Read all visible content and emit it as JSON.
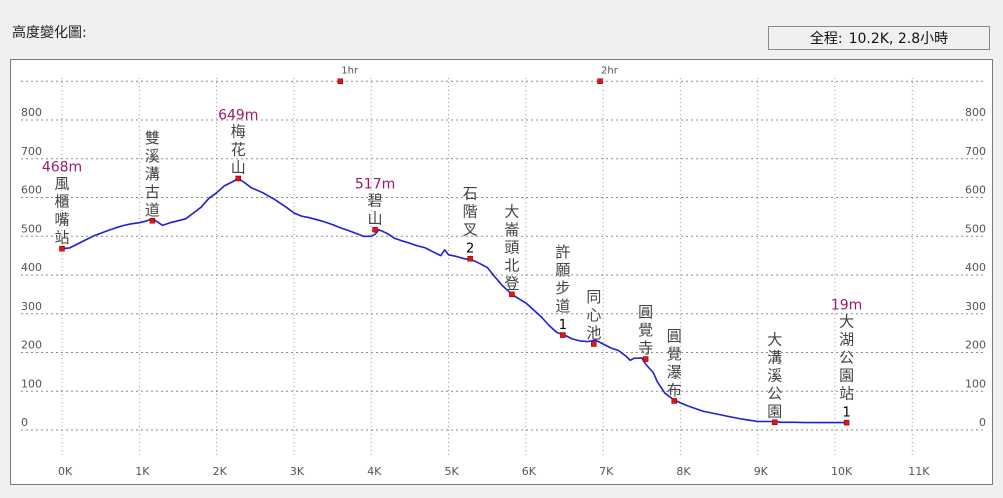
{
  "header": {
    "title": "高度變化圖:",
    "summary_label": "全程:",
    "summary_value": "10.2K, 2.8小時"
  },
  "chart_data": {
    "type": "line",
    "title": "",
    "xlabel": "",
    "ylabel": "",
    "x_unit": "K",
    "y_unit": "m",
    "xlim": [
      0,
      11.3
    ],
    "ylim": [
      0,
      900
    ],
    "x_ticks": [
      "0K",
      "1K",
      "2K",
      "3K",
      "4K",
      "5K",
      "6K",
      "7K",
      "8K",
      "9K",
      "10K",
      "11K"
    ],
    "y_ticks": [
      "0",
      "100",
      "200",
      "300",
      "400",
      "500",
      "600",
      "700",
      "800"
    ],
    "grid": true,
    "series": [
      {
        "color": "#1f1fd6",
        "x": [
          0.0,
          0.1,
          0.2,
          0.3,
          0.4,
          0.5,
          0.6,
          0.7,
          0.8,
          0.9,
          1.0,
          1.1,
          1.17,
          1.25,
          1.3,
          1.4,
          1.5,
          1.6,
          1.7,
          1.8,
          1.9,
          2.0,
          2.1,
          2.2,
          2.28,
          2.35,
          2.45,
          2.6,
          2.75,
          2.9,
          3.0,
          3.1,
          3.2,
          3.35,
          3.5,
          3.6,
          3.7,
          3.8,
          3.9,
          4.0,
          4.05,
          4.1,
          4.2,
          4.3,
          4.4,
          4.5,
          4.6,
          4.7,
          4.8,
          4.9,
          4.95,
          5.0,
          5.1,
          5.2,
          5.28,
          5.35,
          5.5,
          5.6,
          5.7,
          5.82,
          5.9,
          6.0,
          6.1,
          6.2,
          6.3,
          6.4,
          6.5,
          6.6,
          6.7,
          6.8,
          6.9,
          7.0,
          7.1,
          7.2,
          7.3,
          7.35,
          7.4,
          7.5,
          7.55,
          7.65,
          7.7,
          7.8,
          7.9,
          8.0,
          8.1,
          8.2,
          8.3,
          8.4,
          8.5,
          8.6,
          8.7,
          8.8,
          8.9,
          9.0,
          9.1,
          9.22,
          9.3,
          9.4,
          9.5,
          9.6,
          9.7,
          9.8,
          9.9,
          10.0,
          10.1,
          10.15
        ],
        "y": [
          468,
          470,
          480,
          490,
          500,
          508,
          515,
          522,
          528,
          532,
          535,
          540,
          545,
          535,
          528,
          535,
          540,
          545,
          560,
          575,
          598,
          612,
          630,
          640,
          649,
          640,
          625,
          612,
          595,
          575,
          560,
          552,
          548,
          540,
          530,
          522,
          515,
          508,
          500,
          500,
          505,
          517,
          508,
          495,
          488,
          482,
          475,
          470,
          460,
          450,
          465,
          452,
          448,
          442,
          440,
          435,
          420,
          395,
          372,
          350,
          340,
          328,
          310,
          292,
          270,
          252,
          245,
          235,
          230,
          228,
          232,
          222,
          212,
          205,
          190,
          180,
          185,
          186,
          170,
          148,
          125,
          95,
          80,
          70,
          62,
          55,
          48,
          44,
          40,
          36,
          32,
          28,
          25,
          22,
          22,
          22,
          20,
          20,
          20,
          19,
          19,
          19,
          19,
          19,
          19,
          19
        ]
      }
    ],
    "waypoints": [
      {
        "name": "風櫃嘴站",
        "x": 0.0,
        "y": 468,
        "elev_label": "468m"
      },
      {
        "name": "雙溪溝古道",
        "x": 1.17,
        "y": 540,
        "elev_label": ""
      },
      {
        "name": "梅花山",
        "x": 2.28,
        "y": 649,
        "elev_label": "649m"
      },
      {
        "name": "碧山",
        "x": 4.05,
        "y": 517,
        "elev_label": "517m"
      },
      {
        "name": "石階叉2",
        "x": 5.28,
        "y": 442,
        "elev_label": ""
      },
      {
        "name": "大崙頭北登",
        "x": 5.82,
        "y": 350,
        "elev_label": ""
      },
      {
        "name": "許願步道1",
        "x": 6.48,
        "y": 245,
        "elev_label": ""
      },
      {
        "name": "同心池",
        "x": 6.88,
        "y": 222,
        "elev_label": ""
      },
      {
        "name": "圓覺寺",
        "x": 7.55,
        "y": 183,
        "elev_label": ""
      },
      {
        "name": "圓覺瀑布",
        "x": 7.92,
        "y": 75,
        "elev_label": ""
      },
      {
        "name": "大溝溪公園",
        "x": 9.22,
        "y": 20,
        "elev_label": ""
      },
      {
        "name": "大湖公園站1",
        "x": 10.15,
        "y": 19,
        "elev_label": "19m"
      }
    ],
    "time_marks": [
      {
        "label": "1hr",
        "x": 3.6
      },
      {
        "label": "2hr",
        "x": 6.96
      }
    ],
    "marker_color": "#e81010",
    "elev_label_color": "#a0186c"
  }
}
